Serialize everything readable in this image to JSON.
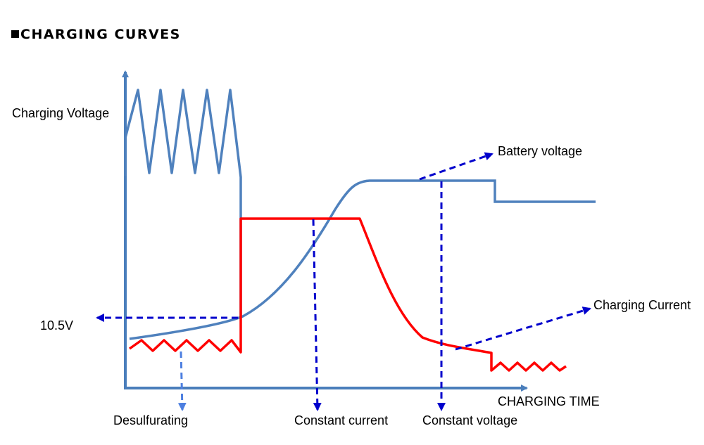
{
  "title": "CHARGING CURVES",
  "labels": {
    "y_axis": "Charging Voltage",
    "x_axis": "CHARGING TIME",
    "voltage_level": "10.5V",
    "battery_voltage": "Battery voltage",
    "charging_current": "Charging Current",
    "desulfurating": "Desulfurating",
    "constant_current": "Constant current",
    "constant_voltage": "Constant voltage"
  },
  "colors": {
    "axis": "#4a7ebb",
    "battery_voltage_curve": "#4f81bd",
    "charging_current_curve": "#ff0000",
    "pointer_arrows": "#0000cc",
    "desulfurating_arrow": "#4d7fe0"
  }
}
